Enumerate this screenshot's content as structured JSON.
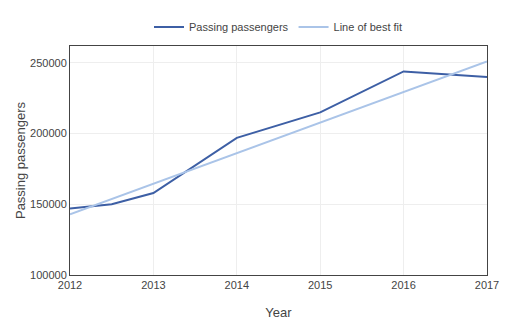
{
  "chart_data": {
    "type": "line",
    "xlabel": "Year",
    "ylabel": "Passing passengers",
    "series": [
      {
        "name": "Passing passengers",
        "color": "#3d5fa5",
        "x": [
          2012,
          2012.5,
          2013,
          2014,
          2015,
          2016,
          2017
        ],
        "values": [
          147000,
          150000,
          158000,
          197000,
          215000,
          244000,
          240000
        ]
      },
      {
        "name": "Line of best fit",
        "color": "#aac4e8",
        "x": [
          2012,
          2017
        ],
        "values": [
          143000,
          251000
        ]
      }
    ],
    "xlim": [
      2012,
      2017
    ],
    "ylim": [
      100000,
      262000
    ],
    "xticks": [
      2012,
      2013,
      2014,
      2015,
      2016,
      2017
    ],
    "yticks": [
      100000,
      150000,
      200000,
      250000
    ],
    "grid": true,
    "legend": "top"
  }
}
